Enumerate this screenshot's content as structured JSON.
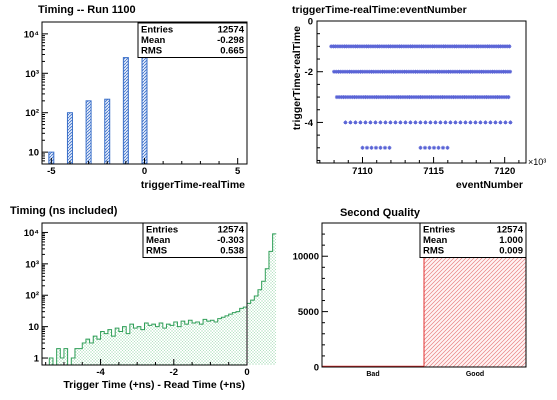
{
  "chart_data": [
    {
      "type": "bar",
      "title": "Timing -- Run 1100",
      "xlabel": "triggerTime-realTime",
      "ylabel": "",
      "xlim": [
        -5.5,
        5.5
      ],
      "ylim": [
        5,
        20000
      ],
      "log_y": true,
      "x_ticks": [
        "-5",
        "0",
        "5"
      ],
      "y_ticks": [
        "10",
        "10²",
        "10³",
        "10⁴"
      ],
      "stats": [
        {
          "label": "Entries",
          "value": "12574"
        },
        {
          "label": "Mean",
          "value": "-0.298"
        },
        {
          "label": "RMS",
          "value": "0.665"
        }
      ],
      "x": [
        -5,
        -4,
        -3,
        -2,
        -1,
        0
      ],
      "values": [
        10,
        100,
        200,
        220,
        2500,
        9500
      ],
      "color": "#3a6fc9"
    },
    {
      "type": "scatter",
      "title": "triggerTime-realTime:eventNumber",
      "xlabel": "eventNumber",
      "ylabel": "triggerTime-realTime",
      "xlim": [
        7106.8,
        7121.5
      ],
      "ylim": [
        -5.6,
        0
      ],
      "x_ticks": [
        "7110",
        "7115",
        "7120"
      ],
      "y_ticks": [
        "0",
        "-2",
        "-4"
      ],
      "x_exponent": "×10³",
      "color": "#5a64d6",
      "bands": [
        {
          "y": -1,
          "x_start": 7107.8,
          "x_end": 7120.4,
          "density": "full"
        },
        {
          "y": -2,
          "x_start": 7108.0,
          "x_end": 7120.4,
          "density": "full"
        },
        {
          "y": -3,
          "x_start": 7108.2,
          "x_end": 7120.4,
          "density": "full"
        },
        {
          "y": -4,
          "x_start": 7108.8,
          "x_end": 7120.5,
          "density": "sparse"
        },
        {
          "y": -5,
          "x_start": 7110.0,
          "x_end": 7116.8,
          "density": "gappy"
        }
      ]
    },
    {
      "type": "bar",
      "title": "Timing (ns included)",
      "xlabel": "Trigger Time (+ns) - Read Time (+ns)",
      "ylabel": "",
      "xlim": [
        -5.6,
        0
      ],
      "ylim": [
        0.6,
        20000
      ],
      "log_y": true,
      "x_ticks": [
        "-4",
        "-2",
        "0"
      ],
      "y_ticks": [
        "1",
        "10",
        "10²",
        "10³",
        "10⁴"
      ],
      "stats": [
        {
          "label": "Entries",
          "value": "12574"
        },
        {
          "label": "Mean",
          "value": "-0.303"
        },
        {
          "label": "RMS",
          "value": "0.538"
        }
      ],
      "bin_start": -5.6,
      "bin_width": 0.1,
      "values": [
        0,
        0,
        1,
        0,
        2,
        1,
        2,
        0,
        1,
        2,
        2,
        3,
        4,
        3,
        5,
        4,
        7,
        6,
        8,
        5,
        9,
        7,
        10,
        6,
        12,
        9,
        10,
        8,
        13,
        11,
        12,
        10,
        13,
        9,
        12,
        11,
        14,
        10,
        15,
        12,
        16,
        13,
        14,
        12,
        17,
        15,
        16,
        14,
        18,
        20,
        22,
        25,
        28,
        30,
        38,
        42,
        55,
        70,
        95,
        150,
        280,
        700,
        2500,
        9000
      ],
      "color": "#2f9e57"
    },
    {
      "type": "bar",
      "title": "Second Quality",
      "xlabel": "",
      "ylabel": "",
      "categories": [
        "Bad",
        "Good"
      ],
      "values": [
        0,
        12574
      ],
      "ylim": [
        0,
        13000
      ],
      "y_ticks": [
        "0",
        "5000",
        "10000"
      ],
      "stats": [
        {
          "label": "Entries",
          "value": "12574"
        },
        {
          "label": "Mean",
          "value": "1.000"
        },
        {
          "label": "RMS",
          "value": "0.009"
        }
      ],
      "color": "#e03030"
    }
  ]
}
